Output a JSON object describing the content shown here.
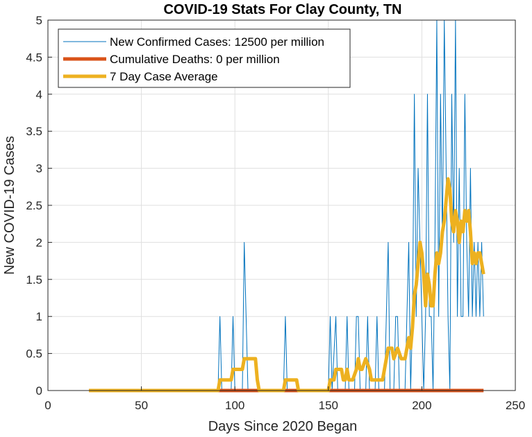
{
  "chart_data": {
    "type": "line",
    "title": "COVID-19 Stats For Clay County, TN",
    "xlabel": "Days Since 2020 Began",
    "ylabel": "New COVID-19 Cases",
    "xlim": [
      0,
      250
    ],
    "ylim": [
      0,
      5
    ],
    "x_ticks": [
      0,
      50,
      100,
      150,
      200,
      250
    ],
    "x_tick_labels": [
      "0",
      "50",
      "100",
      "150",
      "200",
      "250"
    ],
    "y_ticks": [
      0,
      0.5,
      1,
      1.5,
      2,
      2.5,
      3,
      3.5,
      4,
      4.5,
      5
    ],
    "y_tick_labels": [
      "0",
      "0.5",
      "1",
      "1.5",
      "2",
      "2.5",
      "3",
      "3.5",
      "4",
      "4.5",
      "5"
    ],
    "grid": true,
    "legend_position": "top-left",
    "legend": [
      "New Confirmed Cases: 12500 per million",
      "Cumulative Deaths: 0 per million",
      "7 Day Case Average"
    ],
    "colors": {
      "cases": "#0072bd",
      "deaths": "#d95319",
      "average": "#edb120"
    },
    "series": [
      {
        "name": "New Confirmed Cases: 12500 per million",
        "points": [
          [
            22,
            0
          ],
          [
            91,
            0
          ],
          [
            92,
            1
          ],
          [
            93,
            0
          ],
          [
            98,
            0
          ],
          [
            99,
            1
          ],
          [
            100,
            0
          ],
          [
            104,
            0
          ],
          [
            105,
            2
          ],
          [
            106,
            1
          ],
          [
            107,
            0
          ],
          [
            126,
            0
          ],
          [
            127,
            1
          ],
          [
            128,
            0
          ],
          [
            150,
            0
          ],
          [
            151,
            1
          ],
          [
            152,
            0
          ],
          [
            154,
            1
          ],
          [
            155,
            0
          ],
          [
            159,
            0
          ],
          [
            160,
            1
          ],
          [
            161,
            0
          ],
          [
            162,
            0
          ],
          [
            163,
            0
          ],
          [
            164,
            0
          ],
          [
            165,
            1
          ],
          [
            166,
            1
          ],
          [
            167,
            0
          ],
          [
            170,
            0
          ],
          [
            171,
            1
          ],
          [
            172,
            0
          ],
          [
            175,
            0
          ],
          [
            176,
            1
          ],
          [
            177,
            0
          ],
          [
            180,
            0
          ],
          [
            181,
            1
          ],
          [
            182,
            2
          ],
          [
            183,
            0
          ],
          [
            185,
            0
          ],
          [
            186,
            1
          ],
          [
            187,
            1
          ],
          [
            188,
            0
          ],
          [
            191,
            0
          ],
          [
            192,
            1
          ],
          [
            193,
            2
          ],
          [
            194,
            0
          ],
          [
            195,
            1
          ],
          [
            196,
            4
          ],
          [
            197,
            1
          ],
          [
            198,
            3
          ],
          [
            199,
            2
          ],
          [
            200,
            1
          ],
          [
            201,
            0
          ],
          [
            202,
            1
          ],
          [
            203,
            4
          ],
          [
            204,
            1
          ],
          [
            205,
            1
          ],
          [
            206,
            0
          ],
          [
            207,
            2
          ],
          [
            208,
            5
          ],
          [
            209,
            1
          ],
          [
            210,
            4
          ],
          [
            211,
            2
          ],
          [
            212,
            5
          ],
          [
            213,
            3
          ],
          [
            214,
            1
          ],
          [
            215,
            0
          ],
          [
            216,
            4
          ],
          [
            217,
            2
          ],
          [
            218,
            5
          ],
          [
            219,
            1
          ],
          [
            220,
            3
          ],
          [
            221,
            1
          ],
          [
            222,
            1
          ],
          [
            223,
            4
          ],
          [
            224,
            2
          ],
          [
            225,
            1
          ],
          [
            226,
            3
          ],
          [
            227,
            1
          ],
          [
            228,
            2
          ],
          [
            229,
            1
          ],
          [
            230,
            2
          ],
          [
            231,
            1
          ],
          [
            232,
            2
          ],
          [
            233,
            1
          ]
        ]
      },
      {
        "name": "Cumulative Deaths: 0 per million",
        "points": [
          [
            22,
            0
          ],
          [
            233,
            0
          ]
        ]
      },
      {
        "name": "7 Day Case Average",
        "points": [
          [
            22,
            0
          ],
          [
            91,
            0
          ],
          [
            92,
            0.143
          ],
          [
            98,
            0.143
          ],
          [
            99,
            0.286
          ],
          [
            104,
            0.286
          ],
          [
            105,
            0.429
          ],
          [
            111,
            0.429
          ],
          [
            112,
            0.143
          ],
          [
            113,
            0
          ],
          [
            126,
            0
          ],
          [
            127,
            0.143
          ],
          [
            133,
            0.143
          ],
          [
            134,
            0
          ],
          [
            150,
            0
          ],
          [
            151,
            0.143
          ],
          [
            153,
            0.143
          ],
          [
            154,
            0.286
          ],
          [
            157,
            0.286
          ],
          [
            158,
            0.143
          ],
          [
            159,
            0.143
          ],
          [
            160,
            0.286
          ],
          [
            161,
            0.143
          ],
          [
            163,
            0.143
          ],
          [
            165,
            0.286
          ],
          [
            166,
            0.429
          ],
          [
            167,
            0.286
          ],
          [
            168,
            0.286
          ],
          [
            170,
            0.429
          ],
          [
            172,
            0.286
          ],
          [
            173,
            0.143
          ],
          [
            179,
            0.143
          ],
          [
            180,
            0.286
          ],
          [
            181,
            0.429
          ],
          [
            182,
            0.571
          ],
          [
            184,
            0.571
          ],
          [
            185,
            0.429
          ],
          [
            187,
            0.571
          ],
          [
            189,
            0.429
          ],
          [
            191,
            0.429
          ],
          [
            192,
            0.571
          ],
          [
            193,
            0.714
          ],
          [
            194,
            0.571
          ],
          [
            195,
            0.857
          ],
          [
            196,
            1.286
          ],
          [
            197,
            1.429
          ],
          [
            198,
            1.714
          ],
          [
            199,
            2.0
          ],
          [
            200,
            1.857
          ],
          [
            201,
            1.571
          ],
          [
            202,
            1.143
          ],
          [
            203,
            1.571
          ],
          [
            204,
            1.429
          ],
          [
            205,
            1.143
          ],
          [
            206,
            1.143
          ],
          [
            207,
            1.571
          ],
          [
            208,
            1.857
          ],
          [
            209,
            1.714
          ],
          [
            210,
            1.857
          ],
          [
            211,
            2.143
          ],
          [
            212,
            2.286
          ],
          [
            213,
            2.571
          ],
          [
            214,
            2.857
          ],
          [
            215,
            2.714
          ],
          [
            216,
            2.286
          ],
          [
            217,
            2.143
          ],
          [
            218,
            2.429
          ],
          [
            219,
            2.286
          ],
          [
            220,
            2.0
          ],
          [
            221,
            2.286
          ],
          [
            222,
            2.143
          ],
          [
            223,
            2.429
          ],
          [
            224,
            2.286
          ],
          [
            225,
            2.429
          ],
          [
            226,
            2.143
          ],
          [
            227,
            1.714
          ],
          [
            228,
            1.857
          ],
          [
            229,
            1.714
          ],
          [
            230,
            1.857
          ],
          [
            231,
            1.857
          ],
          [
            232,
            1.714
          ],
          [
            233,
            1.571
          ]
        ]
      }
    ]
  }
}
